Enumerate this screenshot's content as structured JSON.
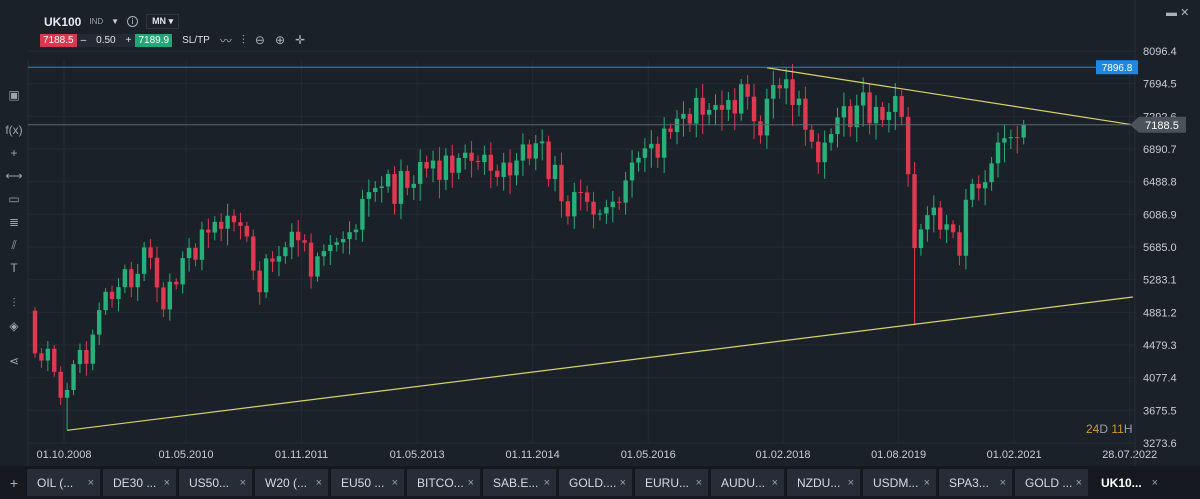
{
  "header": {
    "symbol": "UK100",
    "type": "IND",
    "timeframe": "MN",
    "sell": "7188.5",
    "quantity": "0.50",
    "buy": "7189.9",
    "sltp": "SL/TP",
    "minus": "–",
    "plus": "+"
  },
  "toolbar_icons": [
    "line-chart-icon",
    "indicators-icon",
    "zoom-out-icon",
    "zoom-in-icon",
    "move-icon"
  ],
  "left_tools": [
    "panel-icon",
    "fx",
    "crosshair-icon",
    "line-tool-icon",
    "rectangle-icon",
    "fibonacci-icon",
    "pitchfork-icon",
    "text-icon",
    "indicators-icon",
    "layers-icon",
    "share-icon"
  ],
  "left_fx": "f(x)",
  "left_text": "T",
  "countdown": {
    "d": "24",
    "d_unit": "D",
    "h": "11",
    "h_unit": "H"
  },
  "tabs": [
    {
      "label": "OIL (...",
      "active": false
    },
    {
      "label": "DE30 ...",
      "active": false
    },
    {
      "label": "US50...",
      "active": false
    },
    {
      "label": "W20 (...",
      "active": false
    },
    {
      "label": "EU50 ...",
      "active": false
    },
    {
      "label": "BITCO...",
      "active": false
    },
    {
      "label": "SAB.E...",
      "active": false
    },
    {
      "label": "GOLD....",
      "active": false
    },
    {
      "label": "EURU...",
      "active": false
    },
    {
      "label": "AUDU...",
      "active": false
    },
    {
      "label": "NZDU...",
      "active": false
    },
    {
      "label": "USDM...",
      "active": false
    },
    {
      "label": "SPA3...",
      "active": false
    },
    {
      "label": "GOLD ...",
      "active": false
    },
    {
      "label": "UK10...",
      "active": true
    }
  ],
  "tab_close": "×",
  "tab_add": "+",
  "chart_data": {
    "type": "candlestick",
    "interval": "monthly",
    "x_start": "2008-10",
    "first_open": 4902,
    "closes": [
      4377,
      4288,
      4434,
      4149,
      3830,
      3926,
      4244,
      4418,
      4249,
      4608,
      4908,
      5134,
      5045,
      5191,
      5413,
      5189,
      5355,
      5680,
      5553,
      5188,
      4917,
      5258,
      5225,
      5549,
      5675,
      5528,
      5900,
      5863,
      5994,
      5909,
      6070,
      5990,
      5945,
      5815,
      5395,
      5128,
      5544,
      5505,
      5572,
      5682,
      5872,
      5768,
      5738,
      5321,
      5571,
      5635,
      5711,
      5742,
      5783,
      5867,
      5898,
      6277,
      6361,
      6412,
      6430,
      6583,
      6215,
      6621,
      6413,
      6462,
      6731,
      6651,
      6749,
      6510,
      6810,
      6598,
      6780,
      6845,
      6744,
      6730,
      6820,
      6623,
      6546,
      6723,
      6566,
      6749,
      6947,
      6773,
      6961,
      6984,
      6521,
      6696,
      6248,
      6062,
      6361,
      6356,
      6242,
      6084,
      6097,
      6175,
      6242,
      6231,
      6504,
      6724,
      6782,
      6899,
      6954,
      6784,
      7143,
      7099,
      7263,
      7323,
      7204,
      7520,
      7313,
      7372,
      7431,
      7373,
      7493,
      7327,
      7688,
      7534,
      7232,
      7057,
      7509,
      7678,
      7637,
      7749,
      7432,
      7510,
      7128,
      6980,
      6728,
      6969,
      7075,
      7279,
      7418,
      7162,
      7426,
      7587,
      7207,
      7408,
      7248,
      7347,
      7542,
      7286,
      6581,
      5672,
      5901,
      6077,
      6170,
      5898,
      5964,
      5866,
      5577,
      6266,
      6461,
      6407,
      6483,
      6714,
      6970,
      7023,
      7037,
      7032,
      7188
    ],
    "low_overrides": {
      "5": 3430,
      "137": 4720
    },
    "ylim": [
      3273.6,
      8096.4
    ],
    "y_ticks": [
      "8096.4",
      "7694.5",
      "7292.6",
      "6890.7",
      "6488.8",
      "6086.9",
      "5685.0",
      "5283.1",
      "4881.2",
      "4479.3",
      "4077.4",
      "3675.5",
      "3273.6"
    ],
    "x_ticks": [
      {
        "label": "01.10.2008",
        "m": 0
      },
      {
        "label": "01.05.2010",
        "m": 19
      },
      {
        "label": "01.11.2011",
        "m": 37
      },
      {
        "label": "01.05.2013",
        "m": 55
      },
      {
        "label": "01.11.2014",
        "m": 73
      },
      {
        "label": "01.05.2016",
        "m": 91
      },
      {
        "label": "01.02.2018",
        "m": 112
      },
      {
        "label": "01.08.2019",
        "m": 130
      },
      {
        "label": "01.02.2021",
        "m": 148
      },
      {
        "label": "28.07.2022",
        "m": 166
      }
    ],
    "horizontal_lines": [
      {
        "value": 7896.8,
        "label": "7896.8",
        "color": "#1e88e5"
      },
      {
        "value": 7188.5,
        "label": "7188.5",
        "color": "#5d6670"
      }
    ],
    "trendlines": [
      {
        "from": [
          5,
          3430
        ],
        "to": [
          171,
          5070
        ],
        "color": "#d6d36a"
      },
      {
        "from": [
          114,
          7890
        ],
        "to": [
          171,
          7188
        ],
        "color": "#d6d36a"
      }
    ],
    "colors": {
      "up": "#26b07a",
      "down": "#e0384f"
    }
  }
}
